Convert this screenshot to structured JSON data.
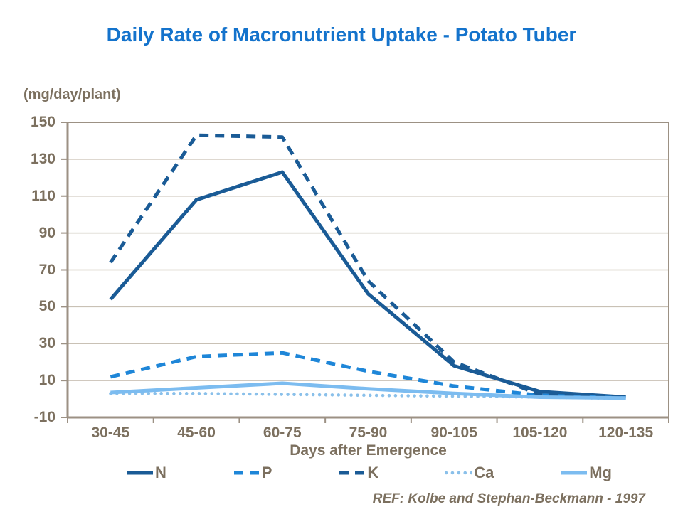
{
  "page": {
    "title": "Daily Rate of Macronutrient Uptake - Potato Tuber",
    "ref": "REF: Kolbe and Stephan-Beckmann - 1997"
  },
  "colors": {
    "title_blue": "#1473CC",
    "axis_text": "#7C705F",
    "axis_line": "#9C9184",
    "gridline": "#C9C1B5",
    "n_color": "#1A5B96",
    "p_color": "#1E86D8",
    "k_color": "#1A5B96",
    "ca_color": "#8AC0EA",
    "mg_color": "#7CBCF0"
  },
  "chart_data": {
    "type": "line",
    "title": "Daily Rate of Macronutrient Uptake - Potato Tuber",
    "unit_label": "(mg/day/plant)",
    "xlabel": "Days after Emergence",
    "ylabel": "(mg/day/plant)",
    "categories": [
      "30-45",
      "45-60",
      "60-75",
      "75-90",
      "90-105",
      "105-120",
      "120-135"
    ],
    "series": [
      {
        "name": "N",
        "color": "#1A5B96",
        "style": "solid",
        "values": [
          54,
          108,
          123,
          57,
          18,
          4,
          1
        ]
      },
      {
        "name": "P",
        "color": "#1E86D8",
        "style": "dashed",
        "values": [
          12,
          23,
          25,
          15,
          7,
          2,
          0.5
        ]
      },
      {
        "name": "K",
        "color": "#1A5B96",
        "style": "dashed",
        "values": [
          74,
          143,
          142,
          64,
          20,
          2.5,
          0.5
        ]
      },
      {
        "name": "Ca",
        "color": "#8AC0EA",
        "style": "dotted",
        "values": [
          3,
          3,
          2.5,
          2,
          1.5,
          1,
          0.3
        ]
      },
      {
        "name": "Mg",
        "color": "#7CBCF0",
        "style": "solid",
        "values": [
          3.5,
          6,
          8.5,
          5.5,
          3,
          1,
          0.5
        ]
      }
    ],
    "ylim": [
      -10,
      150
    ],
    "yticks": [
      -10,
      10,
      30,
      50,
      70,
      90,
      110,
      130,
      150
    ],
    "grid": true,
    "legend_position": "bottom"
  }
}
